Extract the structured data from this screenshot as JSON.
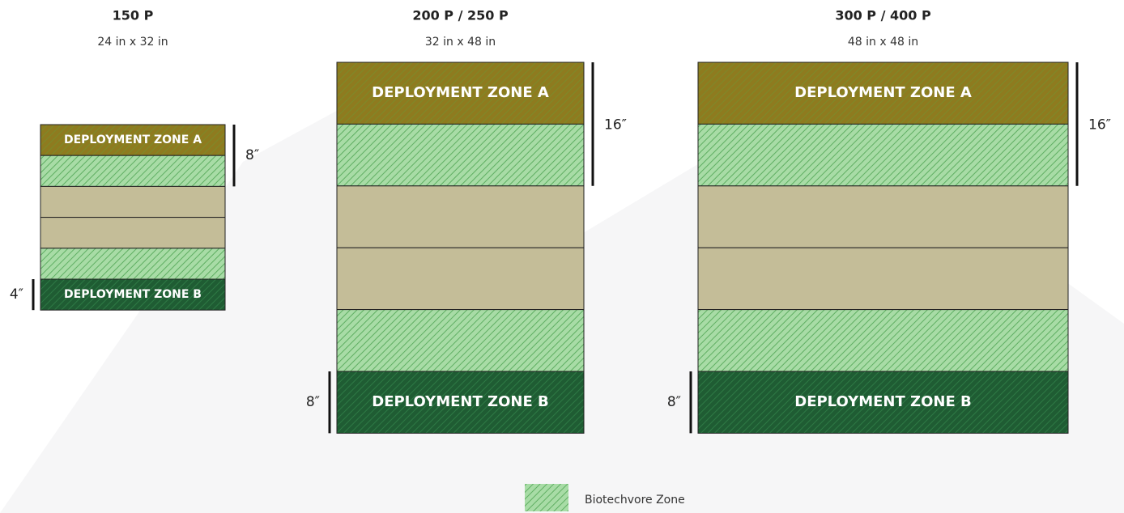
{
  "boards": [
    {
      "title": "150 P",
      "size": "24 in x 32 in",
      "zone_a": "DEPLOYMENT ZONE A",
      "zone_b": "DEPLOYMENT ZONE B",
      "top_measure": "8″",
      "bottom_measure": "4″"
    },
    {
      "title": "200 P / 250 P",
      "size": "32 in x 48 in",
      "zone_a": "DEPLOYMENT ZONE A",
      "zone_b": "DEPLOYMENT ZONE B",
      "top_measure": "16″",
      "bottom_measure": "8″"
    },
    {
      "title": "300 P / 400 P",
      "size": "48 in x 48 in",
      "zone_a": "DEPLOYMENT ZONE A",
      "zone_b": "DEPLOYMENT ZONE B",
      "top_measure": "16″",
      "bottom_measure": "8″"
    }
  ],
  "legend": {
    "label": "Biotechvore Zone"
  }
}
